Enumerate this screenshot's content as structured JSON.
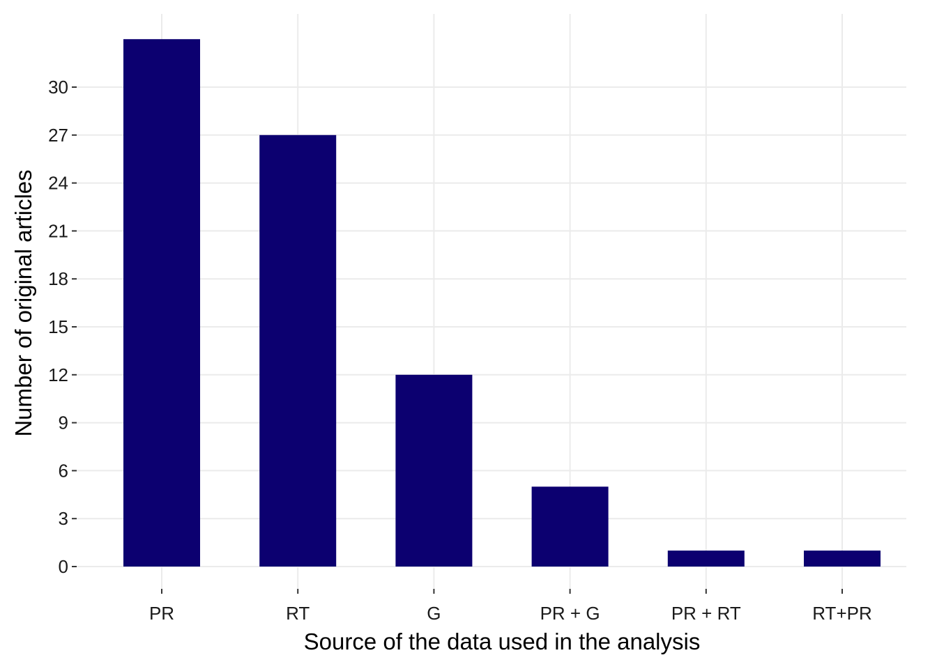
{
  "chart_data": {
    "type": "bar",
    "title": "",
    "xlabel": "Source of the data used in the analysis",
    "ylabel": "Number of original articles",
    "categories": [
      "PR",
      "RT",
      "G",
      "PR + G",
      "PR + RT",
      "RT+PR"
    ],
    "values": [
      33,
      27,
      12,
      5,
      1,
      1
    ],
    "ylim": [
      0,
      33
    ],
    "yticks": [
      0,
      3,
      6,
      9,
      12,
      15,
      18,
      21,
      24,
      27,
      30
    ],
    "grid": true,
    "legend": "none",
    "bar_color": "#0c0070",
    "grid_color": "#ebebeb"
  }
}
